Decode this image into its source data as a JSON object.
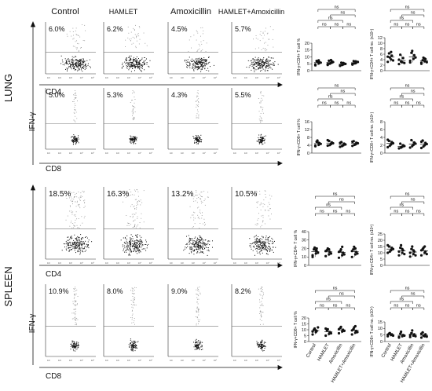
{
  "figure": {
    "column_headers": [
      "Control",
      "HAMLET",
      "Amoxicillin",
      "HAMLET+Amoxicillin"
    ],
    "sections": [
      {
        "label": "LUNG",
        "y_marker": "IFN-γ",
        "rows": [
          {
            "x_marker": "CD4",
            "percentages": [
              "6.0%",
              "6.2%",
              "4.5%",
              "5.7%"
            ]
          },
          {
            "x_marker": "CD8",
            "percentages": [
              "5.0%",
              "5.3%",
              "4.3%",
              "5.5%"
            ]
          }
        ]
      },
      {
        "label": "SPLEEN",
        "y_marker": "IFN-γ",
        "rows": [
          {
            "x_marker": "CD4",
            "percentages": [
              "18.5%",
              "16.3%",
              "13.2%",
              "10.5%"
            ]
          },
          {
            "x_marker": "CD8",
            "percentages": [
              "10.9%",
              "8.0%",
              "9.0%",
              "8.2%"
            ]
          }
        ]
      }
    ],
    "significance_label": "ns",
    "group_labels": [
      "Control",
      "HAMLET",
      "Amoxicillin",
      "HAMLET+Amoxicillin"
    ],
    "flow_tick_labels": [
      "10⁰",
      "10¹",
      "10²",
      "10³",
      "10⁴",
      "10⁵"
    ]
  },
  "chart_data": [
    {
      "type": "scatter",
      "section": "LUNG",
      "ylabel": "IFN-γ+CD4+ T cell %",
      "ylim": [
        0,
        20
      ],
      "yticks": [
        0,
        5,
        10,
        15,
        20
      ],
      "categories": [
        "Control",
        "HAMLET",
        "Amoxicillin",
        "HAMLET+Amoxicillin"
      ],
      "groups": [
        [
          4.5,
          5.2,
          6.0,
          7.1,
          6.5,
          5.8,
          3.9,
          7.5,
          6.2
        ],
        [
          4.8,
          5.6,
          6.8,
          7.2,
          5.1,
          6.3,
          4.2,
          7.7,
          5.9
        ],
        [
          3.9,
          4.6,
          5.1,
          5.8,
          4.1,
          4.9,
          3.5,
          5.6
        ],
        [
          4.9,
          5.5,
          6.1,
          7.0,
          5.3,
          6.4,
          4.4,
          6.8
        ]
      ]
    },
    {
      "type": "scatter",
      "section": "LUNG",
      "ylabel": "IFN-γ+CD4+ T cell no. (x10⁴)",
      "ylim": [
        0,
        12
      ],
      "yticks": [
        0,
        2,
        4,
        6,
        8,
        10,
        12
      ],
      "categories": [
        "Control",
        "HAMLET",
        "Amoxicillin",
        "HAMLET+Amoxicillin"
      ],
      "groups": [
        [
          3.2,
          4.1,
          5.5,
          6.3,
          4.8,
          3.7,
          5.1,
          6.8
        ],
        [
          2.4,
          3.1,
          4.6,
          5.8,
          3.3,
          2.8,
          4.0
        ],
        [
          3.0,
          4.3,
          5.6,
          6.5,
          7.2,
          4.8,
          3.6
        ],
        [
          2.5,
          3.4,
          4.2,
          3.8,
          4.7,
          3.1,
          2.9,
          4.4
        ]
      ]
    },
    {
      "type": "scatter",
      "section": "LUNG",
      "ylabel": "IFN-γ+CD8+ T cell %",
      "ylim": [
        0,
        16
      ],
      "yticks": [
        0,
        4,
        8,
        12,
        16
      ],
      "categories": [
        "Control",
        "HAMLET",
        "Amoxicillin",
        "HAMLET+Amoxicillin"
      ],
      "groups": [
        [
          3.5,
          4.2,
          5.1,
          5.8,
          6.4,
          4.7,
          3.9,
          5.3
        ],
        [
          3.8,
          4.6,
          5.5,
          6.2,
          4.1,
          5.0,
          6.6
        ],
        [
          3.2,
          4.0,
          4.8,
          5.6,
          3.6,
          4.4,
          5.2
        ],
        [
          3.7,
          4.5,
          5.3,
          6.1,
          4.2,
          5.0,
          5.8
        ]
      ]
    },
    {
      "type": "scatter",
      "section": "LUNG",
      "ylabel": "IFN-γ+CD8+ T cell no. (x10⁴)",
      "ylim": [
        0,
        8
      ],
      "yticks": [
        0,
        2,
        4,
        6,
        8
      ],
      "categories": [
        "Control",
        "HAMLET",
        "Amoxicillin",
        "HAMLET+Amoxicillin"
      ],
      "groups": [
        [
          1.5,
          2.2,
          2.8,
          3.1,
          1.9,
          2.5,
          3.4
        ],
        [
          1.2,
          1.6,
          2.0,
          2.4,
          1.4,
          1.8
        ],
        [
          1.4,
          2.1,
          2.7,
          3.3,
          1.8,
          2.4
        ],
        [
          1.3,
          2.0,
          2.6,
          3.2,
          1.7,
          2.3,
          2.9
        ]
      ]
    },
    {
      "type": "scatter",
      "section": "SPLEEN",
      "ylabel": "IFN-γ+CD4+ T cell %",
      "ylim": [
        0,
        40
      ],
      "yticks": [
        0,
        10,
        20,
        30,
        40
      ],
      "categories": [
        "Control",
        "HAMLET",
        "Amoxicillin",
        "HAMLET+Amoxicillin"
      ],
      "groups": [
        [
          10,
          14,
          17,
          19,
          21,
          15,
          12,
          18,
          20
        ],
        [
          11,
          13,
          16,
          18,
          20,
          14,
          17,
          19
        ],
        [
          9,
          12,
          15,
          17,
          19,
          13,
          16,
          22
        ],
        [
          10,
          13,
          16,
          19,
          22,
          14,
          17,
          20
        ]
      ]
    },
    {
      "type": "scatter",
      "section": "SPLEEN",
      "ylabel": "IFN-γ+CD4+ T cell no. (x10⁵)",
      "ylim": [
        0,
        25
      ],
      "yticks": [
        0,
        5,
        10,
        15,
        20,
        25
      ],
      "categories": [
        "Control",
        "HAMLET",
        "Amoxicillin",
        "HAMLET+Amoxicillin"
      ],
      "groups": [
        [
          10,
          12,
          14,
          15,
          11,
          13,
          16
        ],
        [
          8,
          10,
          12,
          14,
          16,
          9,
          11,
          13
        ],
        [
          7,
          9,
          11,
          13,
          15,
          8,
          10,
          12
        ],
        [
          8,
          10,
          11,
          13,
          14,
          9,
          12,
          15
        ]
      ]
    },
    {
      "type": "scatter",
      "section": "SPLEEN",
      "ylabel": "IFN-γ+CD8+ T cell %",
      "ylim": [
        0,
        20
      ],
      "yticks": [
        0,
        5,
        10,
        15,
        20
      ],
      "categories": [
        "Control",
        "HAMLET",
        "Amoxicillin",
        "HAMLET+Amoxicillin"
      ],
      "groups": [
        [
          6,
          8,
          9,
          10,
          11,
          12,
          8.5,
          9.5
        ],
        [
          5,
          6.5,
          8,
          9.5,
          10.5,
          7,
          11
        ],
        [
          7,
          8.5,
          10,
          11.5,
          12.5,
          9,
          10.5
        ],
        [
          6,
          7.5,
          9,
          10.5,
          12,
          8,
          9.5,
          13
        ]
      ]
    },
    {
      "type": "scatter",
      "section": "SPLEEN",
      "ylabel": "IFN-γ+CD8+ T cell no. (x10⁵)",
      "ylim": [
        0,
        15
      ],
      "yticks": [
        0,
        5,
        10,
        15
      ],
      "categories": [
        "Control",
        "HAMLET",
        "Amoxicillin",
        "HAMLET+Amoxicillin"
      ],
      "groups": [
        [
          4,
          5,
          5.5,
          6,
          6.5,
          4.5,
          5.2
        ],
        [
          3,
          4,
          5,
          6,
          7.5,
          4.5,
          3.5
        ],
        [
          3.5,
          4.5,
          5.5,
          6.5,
          8.5,
          4,
          5
        ],
        [
          3,
          4,
          5.5,
          7,
          4.5,
          3.8,
          6
        ]
      ]
    }
  ]
}
